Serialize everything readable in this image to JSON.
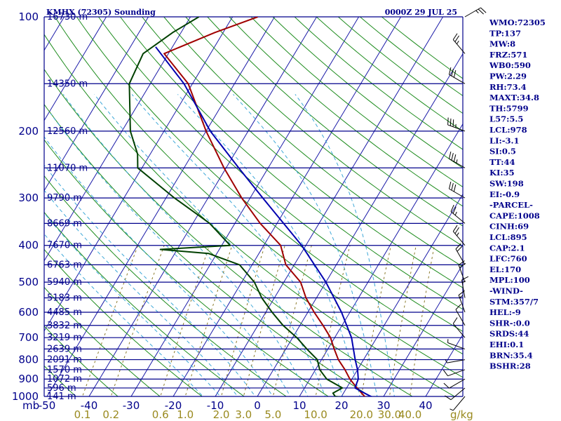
{
  "header": {
    "station": "KMHX (72305) Sounding",
    "time": "0000Z 29 JUL 25"
  },
  "colors": {
    "isobar": "#00008b",
    "isotherm": "#1a1aa8",
    "dry_adiabat": "#1e8c1e",
    "moist_adiabat": "#3ea8d8",
    "mixing_ratio": "#8a7a2a",
    "temperature": "#a00000",
    "dewpoint": "#004000",
    "parcel": "#0000b0",
    "label": "#00008b",
    "mix_label": "#9a8a1f"
  },
  "chart_data": {
    "type": "line",
    "subtype": "skew-t log-p",
    "pressure_axis": {
      "unit_label": "mb",
      "range": [
        1000,
        100
      ],
      "log_scale": true,
      "labels": [
        100,
        200,
        300,
        400,
        500,
        600,
        700,
        800,
        900,
        1000
      ]
    },
    "temperature_axis": {
      "range": [
        -50,
        45
      ],
      "labels": [
        -50,
        -40,
        -30,
        -20,
        -10,
        0,
        10,
        20,
        30,
        40
      ]
    },
    "height_labels": [
      {
        "p": 100,
        "label": "16730 m"
      },
      {
        "p": 150,
        "label": "14350 m"
      },
      {
        "p": 200,
        "label": "12560 m"
      },
      {
        "p": 250,
        "label": "11070 m"
      },
      {
        "p": 300,
        "label": "9790 m"
      },
      {
        "p": 350,
        "label": "8669 m"
      },
      {
        "p": 400,
        "label": "7670 m"
      },
      {
        "p": 450,
        "label": "6763 m"
      },
      {
        "p": 500,
        "label": "5940 m"
      },
      {
        "p": 550,
        "label": "5183 m"
      },
      {
        "p": 600,
        "label": "4485 m"
      },
      {
        "p": 650,
        "label": "3832 m"
      },
      {
        "p": 700,
        "label": "3219 m"
      },
      {
        "p": 750,
        "label": "2639 m"
      },
      {
        "p": 800,
        "label": "2091 m"
      },
      {
        "p": 850,
        "label": "1570 m"
      },
      {
        "p": 900,
        "label": "1072 m"
      },
      {
        "p": 950,
        "label": "596 m"
      },
      {
        "p": 1000,
        "label": "141 m"
      }
    ],
    "mixing_ratio_labels": [
      "0.1",
      "0.2",
      "0.6",
      "1.0",
      "2.0",
      "3.0",
      "5.0",
      "10.0",
      "20.0",
      "30.0",
      "40.0"
    ],
    "mixing_ratio_unit": "g/kg",
    "mixing_ratio_values": [
      0.1,
      0.2,
      0.6,
      1.0,
      2.0,
      3.0,
      5.0,
      10.0,
      20.0,
      30.0,
      40.0
    ],
    "series": [
      {
        "key": "temperature",
        "points": [
          [
            1010,
            26.5
          ],
          [
            1000,
            25.5
          ],
          [
            950,
            22.5
          ],
          [
            900,
            19.5
          ],
          [
            850,
            17
          ],
          [
            800,
            14
          ],
          [
            750,
            11.5
          ],
          [
            700,
            9
          ],
          [
            650,
            5.5
          ],
          [
            600,
            1.5
          ],
          [
            550,
            -2.5
          ],
          [
            500,
            -6
          ],
          [
            450,
            -12
          ],
          [
            400,
            -16
          ],
          [
            350,
            -24
          ],
          [
            300,
            -32
          ],
          [
            250,
            -40.5
          ],
          [
            200,
            -50
          ],
          [
            150,
            -61
          ],
          [
            125,
            -71
          ],
          [
            110,
            -62
          ],
          [
            100,
            -54
          ]
        ]
      },
      {
        "key": "dewpoint",
        "points": [
          [
            1010,
            22
          ],
          [
            1000,
            18.5
          ],
          [
            980,
            17.5
          ],
          [
            950,
            19
          ],
          [
            900,
            14
          ],
          [
            850,
            11
          ],
          [
            800,
            9
          ],
          [
            750,
            5
          ],
          [
            700,
            1
          ],
          [
            650,
            -4
          ],
          [
            600,
            -8.5
          ],
          [
            550,
            -13
          ],
          [
            500,
            -17
          ],
          [
            450,
            -23
          ],
          [
            420,
            -32
          ],
          [
            410,
            -44
          ],
          [
            400,
            -28
          ],
          [
            350,
            -36
          ],
          [
            300,
            -48
          ],
          [
            250,
            -61
          ],
          [
            230,
            -63
          ],
          [
            200,
            -68
          ],
          [
            150,
            -75
          ],
          [
            125,
            -76
          ],
          [
            110,
            -72
          ],
          [
            100,
            -68
          ]
        ]
      },
      {
        "key": "parcel",
        "points": [
          [
            1010,
            28.5
          ],
          [
            1000,
            27
          ],
          [
            980,
            25
          ],
          [
            950,
            22
          ],
          [
            900,
            21.5
          ],
          [
            850,
            20
          ],
          [
            800,
            18
          ],
          [
            700,
            14
          ],
          [
            600,
            8
          ],
          [
            500,
            0
          ],
          [
            400,
            -11
          ],
          [
            300,
            -27
          ],
          [
            250,
            -37
          ],
          [
            200,
            -49
          ],
          [
            150,
            -62
          ],
          [
            120,
            -74
          ]
        ]
      }
    ],
    "winds": [
      {
        "p": 1000,
        "dir": 220,
        "spd": 5
      },
      {
        "p": 950,
        "dir": 230,
        "spd": 10
      },
      {
        "p": 900,
        "dir": 240,
        "spd": 10
      },
      {
        "p": 850,
        "dir": 250,
        "spd": 10
      },
      {
        "p": 800,
        "dir": 260,
        "spd": 5
      },
      {
        "p": 750,
        "dir": 290,
        "spd": 5
      },
      {
        "p": 700,
        "dir": 320,
        "spd": 10
      },
      {
        "p": 650,
        "dir": 330,
        "spd": 10
      },
      {
        "p": 600,
        "dir": 340,
        "spd": 15
      },
      {
        "p": 550,
        "dir": 350,
        "spd": 15
      },
      {
        "p": 500,
        "dir": 340,
        "spd": 20
      },
      {
        "p": 450,
        "dir": 330,
        "spd": 20
      },
      {
        "p": 400,
        "dir": 320,
        "spd": 25
      },
      {
        "p": 350,
        "dir": 310,
        "spd": 25
      },
      {
        "p": 300,
        "dir": 300,
        "spd": 30
      },
      {
        "p": 250,
        "dir": 300,
        "spd": 35
      },
      {
        "p": 200,
        "dir": 290,
        "spd": 35
      },
      {
        "p": 150,
        "dir": 300,
        "spd": 30
      },
      {
        "p": 125,
        "dir": 320,
        "spd": 25
      },
      {
        "p": 100,
        "dir": 60,
        "spd": 25
      }
    ]
  },
  "indices": [
    "WMO:72305",
    "TP:137",
    "MW:8",
    "FRZ:571",
    "WB0:590",
    "PW:2.29",
    "RH:73.4",
    "MAXT:34.8",
    "TH:5799",
    "L57:5.5",
    "LCL:978",
    "LI:-3.1",
    "SI:0.5",
    "TT:44",
    "KI:35",
    "SW:198",
    "EI:-0.9",
    "-PARCEL-",
    "CAPE:1008",
    "CINH:69",
    "LCL:895",
    "CAP:2.1",
    "LFC:760",
    "EL:170",
    "MPL:100",
    "-WIND-",
    "STM:357/7",
    "HEL:-9",
    "SHR-:0.0",
    "SRDS:44",
    "EHI:0.1",
    "BRN:35.4",
    "BSHR:28"
  ]
}
